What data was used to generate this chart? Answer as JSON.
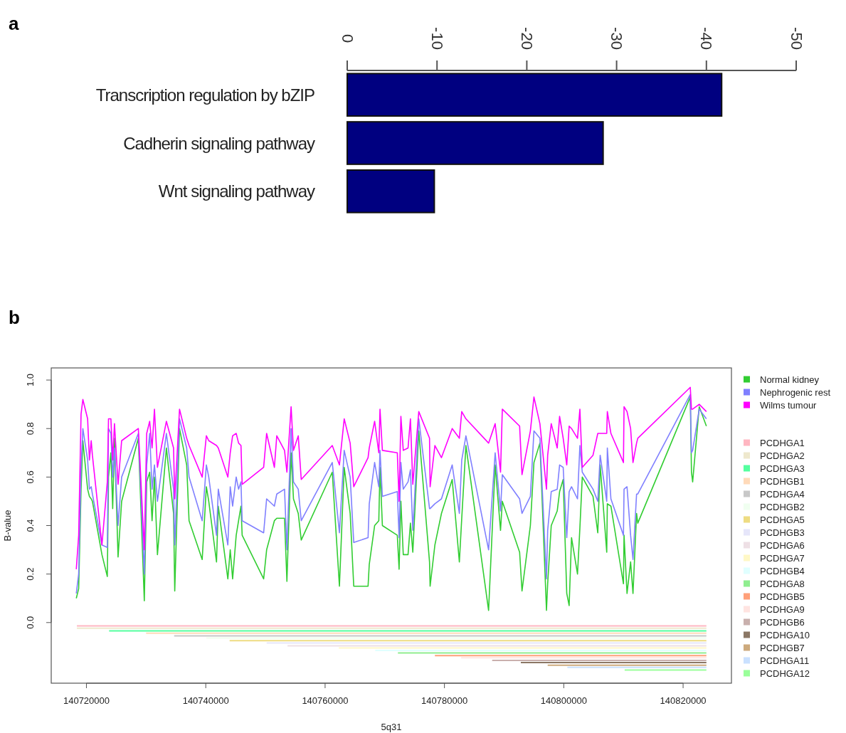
{
  "chart_data": [
    {
      "type": "bar",
      "title": "a",
      "orientation": "horizontal",
      "categories": [
        "Transcription regulation by bZIP",
        "Cadherin signaling pathway",
        "Wnt signaling pathway"
      ],
      "values": [
        -41.7,
        -28.5,
        -9.7
      ],
      "color": "#000080",
      "xlim": [
        0,
        -50
      ],
      "xticks": [
        0,
        -10,
        -20,
        -30,
        -40,
        -50
      ]
    },
    {
      "type": "line",
      "title": "b",
      "xlabel": "5q31",
      "ylabel": "B-value",
      "legend": "right",
      "xlim": [
        140714100,
        140828100
      ],
      "xticks": [
        140720000,
        140740000,
        140760000,
        140780000,
        140800000,
        140820000
      ],
      "ylim": [
        -0.25,
        1.05
      ],
      "yticks": [
        {
          "value": 0,
          "label": "0.0"
        },
        {
          "value": 0.2,
          "label": "0.2"
        },
        {
          "value": 0.4,
          "label": "0.4"
        },
        {
          "value": 0.6,
          "label": "0.6"
        },
        {
          "value": 0.8,
          "label": "0.8"
        },
        {
          "value": 1,
          "label": "1.0"
        }
      ],
      "x": [
        140718300,
        140718700,
        140719100,
        140719400,
        140720200,
        140720500,
        140720800,
        140721000,
        140722600,
        140723500,
        140723700,
        140724100,
        140724400,
        140724700,
        140725300,
        140725900,
        140728700,
        140729700,
        140730100,
        140730600,
        140731000,
        140731400,
        140731900,
        140733400,
        140734600,
        140734800,
        140735600,
        140736800,
        140737200,
        140739400,
        140740100,
        140740500,
        140741800,
        140742100,
        140743700,
        140744100,
        140744500,
        140745100,
        140745500,
        140745900,
        140746100,
        140749700,
        140750200,
        140751500,
        140751900,
        140753200,
        140753600,
        140754300,
        140754700,
        140755500,
        140756000,
        140761200,
        140762400,
        140763200,
        140764200,
        140764800,
        140767200,
        140767400,
        140768300,
        140769000,
        140769200,
        140769600,
        140772100,
        140772400,
        140772700,
        140773100,
        140773900,
        140774300,
        140774700,
        140775700,
        140777500,
        140777600,
        140778400,
        140779500,
        140781300,
        140782500,
        140782900,
        140783600,
        140787400,
        140788500,
        140789400,
        140789700,
        140792600,
        140793000,
        140794400,
        140795000,
        140796000,
        140797100,
        140797300,
        140797900,
        140798900,
        140799300,
        140799900,
        140800500,
        140800900,
        140801300,
        140802300,
        140802700,
        140803100,
        140804900,
        140805700,
        140806100,
        140807200,
        140807300,
        140807900,
        140810000,
        140810100,
        140810600,
        140811200,
        140811600,
        140812200,
        140812400,
        140821200,
        140821400,
        140821600,
        140822700,
        140823900
      ],
      "series": [
        {
          "name": "Normal kidney",
          "color": "#32cd32",
          "values": [
            0.1,
            0.14,
            0.55,
            0.75,
            0.55,
            0.52,
            0.51,
            0.5,
            0.28,
            0.19,
            0.6,
            0.7,
            0.47,
            0.76,
            0.27,
            0.5,
            0.76,
            0.09,
            0.58,
            0.62,
            0.42,
            0.6,
            0.28,
            0.72,
            0.45,
            0.13,
            0.8,
            0.65,
            0.42,
            0.26,
            0.56,
            0.5,
            0.25,
            0.48,
            0.18,
            0.3,
            0.18,
            0.36,
            0.42,
            0.48,
            0.36,
            0.18,
            0.3,
            0.42,
            0.43,
            0.43,
            0.17,
            0.7,
            0.51,
            0.45,
            0.34,
            0.62,
            0.15,
            0.64,
            0.45,
            0.15,
            0.15,
            0.24,
            0.4,
            0.42,
            0.64,
            0.4,
            0.36,
            0.22,
            0.5,
            0.28,
            0.28,
            0.41,
            0.29,
            0.79,
            0.25,
            0.15,
            0.32,
            0.45,
            0.59,
            0.25,
            0.43,
            0.73,
            0.05,
            0.65,
            0.38,
            0.5,
            0.29,
            0.13,
            0.4,
            0.66,
            0.74,
            0.05,
            0.16,
            0.4,
            0.46,
            0.54,
            0.59,
            0.12,
            0.07,
            0.35,
            0.2,
            0.39,
            0.6,
            0.52,
            0.37,
            0.65,
            0.29,
            0.49,
            0.48,
            0.16,
            0.36,
            0.12,
            0.25,
            0.12,
            0.45,
            0.41,
            0.93,
            0.62,
            0.58,
            0.89,
            0.81
          ]
        },
        {
          "name": "Nephrogenic rest",
          "color": "#8080ff",
          "values": [
            0.12,
            0.2,
            0.64,
            0.8,
            0.67,
            0.55,
            0.56,
            0.53,
            0.32,
            0.31,
            0.8,
            0.78,
            0.6,
            0.72,
            0.4,
            0.6,
            0.78,
            0.2,
            0.65,
            0.78,
            0.55,
            0.65,
            0.5,
            0.78,
            0.55,
            0.32,
            0.84,
            0.72,
            0.6,
            0.42,
            0.65,
            0.6,
            0.36,
            0.55,
            0.32,
            0.56,
            0.48,
            0.6,
            0.55,
            0.58,
            0.42,
            0.37,
            0.51,
            0.48,
            0.53,
            0.55,
            0.3,
            0.8,
            0.58,
            0.55,
            0.42,
            0.66,
            0.37,
            0.71,
            0.6,
            0.33,
            0.35,
            0.49,
            0.66,
            0.56,
            0.71,
            0.52,
            0.54,
            0.35,
            0.66,
            0.55,
            0.58,
            0.63,
            0.38,
            0.84,
            0.47,
            0.47,
            0.49,
            0.51,
            0.65,
            0.45,
            0.67,
            0.77,
            0.3,
            0.7,
            0.46,
            0.61,
            0.51,
            0.45,
            0.52,
            0.79,
            0.76,
            0.18,
            0.38,
            0.54,
            0.55,
            0.65,
            0.64,
            0.35,
            0.54,
            0.56,
            0.51,
            0.73,
            0.62,
            0.55,
            0.5,
            0.69,
            0.5,
            0.72,
            0.51,
            0.36,
            0.55,
            0.56,
            0.36,
            0.26,
            0.53,
            0.53,
            0.94,
            0.7,
            0.71,
            0.88,
            0.84
          ]
        },
        {
          "name": "Wilms tumour",
          "color": "#ff00ff",
          "values": [
            0.22,
            0.36,
            0.86,
            0.92,
            0.84,
            0.67,
            0.75,
            0.69,
            0.32,
            0.58,
            0.84,
            0.84,
            0.67,
            0.82,
            0.57,
            0.75,
            0.8,
            0.3,
            0.78,
            0.83,
            0.72,
            0.88,
            0.64,
            0.83,
            0.72,
            0.51,
            0.88,
            0.76,
            0.73,
            0.6,
            0.77,
            0.75,
            0.73,
            0.72,
            0.6,
            0.7,
            0.77,
            0.78,
            0.74,
            0.73,
            0.57,
            0.64,
            0.78,
            0.64,
            0.77,
            0.71,
            0.62,
            0.89,
            0.71,
            0.77,
            0.59,
            0.73,
            0.65,
            0.84,
            0.74,
            0.56,
            0.68,
            0.72,
            0.83,
            0.7,
            0.88,
            0.71,
            0.7,
            0.5,
            0.85,
            0.71,
            0.72,
            0.84,
            0.57,
            0.87,
            0.76,
            0.56,
            0.73,
            0.68,
            0.8,
            0.76,
            0.87,
            0.84,
            0.74,
            0.82,
            0.62,
            0.88,
            0.81,
            0.61,
            0.79,
            0.93,
            0.82,
            0.55,
            0.69,
            0.82,
            0.72,
            0.85,
            0.76,
            0.65,
            0.81,
            0.8,
            0.76,
            0.88,
            0.64,
            0.69,
            0.78,
            0.78,
            0.78,
            0.87,
            0.78,
            0.66,
            0.89,
            0.87,
            0.8,
            0.66,
            0.74,
            0.76,
            0.97,
            0.88,
            0.88,
            0.9,
            0.87
          ]
        },
        {
          "name": "PCDHGA1",
          "color": "#ffb6c1",
          "x": [
            140718400,
            140823900
          ],
          "values": [
            -0.014,
            -0.014
          ]
        },
        {
          "name": "PCDHGA2",
          "color": "#eee8cd",
          "x": [
            140718400,
            140823900
          ],
          "values": [
            -0.023,
            -0.023
          ]
        },
        {
          "name": "PCDHGA3",
          "color": "#54ff9f",
          "x": [
            140723800,
            140823900
          ],
          "values": [
            -0.034,
            -0.034
          ]
        },
        {
          "name": "PCDHGB1",
          "color": "#ffdab9",
          "x": [
            140730000,
            140823900
          ],
          "values": [
            -0.044,
            -0.044
          ]
        },
        {
          "name": "PCDHGA4",
          "color": "#c8c8c8",
          "x": [
            140734700,
            140823900
          ],
          "values": [
            -0.055,
            -0.055
          ]
        },
        {
          "name": "PCDHGB2",
          "color": "#f0fff0",
          "x": [
            140740100,
            140823900
          ],
          "values": [
            -0.064,
            -0.064
          ]
        },
        {
          "name": "PCDHGA5",
          "color": "#eedc82",
          "x": [
            140744000,
            140823900
          ],
          "values": [
            -0.075,
            -0.075
          ]
        },
        {
          "name": "PCDHGB3",
          "color": "#e6e6fa",
          "x": [
            140750200,
            140823900
          ],
          "values": [
            -0.084,
            -0.084
          ]
        },
        {
          "name": "PCDHGA6",
          "color": "#eee0e5",
          "x": [
            140753700,
            140823900
          ],
          "values": [
            -0.096,
            -0.096
          ]
        },
        {
          "name": "PCDHGA7",
          "color": "#fff8c6",
          "x": [
            140762300,
            140823900
          ],
          "values": [
            -0.105,
            -0.105
          ]
        },
        {
          "name": "PCDHGB4",
          "color": "#e0ffff",
          "x": [
            140768400,
            140823900
          ],
          "values": [
            -0.115,
            -0.115
          ]
        },
        {
          "name": "PCDHGA8",
          "color": "#90ee90",
          "x": [
            140772200,
            140823900
          ],
          "values": [
            -0.125,
            -0.125
          ]
        },
        {
          "name": "PCDHGB5",
          "color": "#ffa07a",
          "x": [
            140778400,
            140823900
          ],
          "values": [
            -0.136,
            -0.136
          ]
        },
        {
          "name": "PCDHGA9",
          "color": "#ffe4e1",
          "x": [
            140782800,
            140823900
          ],
          "values": [
            -0.145,
            -0.145
          ]
        },
        {
          "name": "PCDHGB6",
          "color": "#c9b0ad",
          "x": [
            140788000,
            140823900
          ],
          "values": [
            -0.156,
            -0.156
          ]
        },
        {
          "name": "PCDHGA10",
          "color": "#8b7765",
          "x": [
            140792800,
            140823900
          ],
          "values": [
            -0.165,
            -0.165
          ]
        },
        {
          "name": "PCDHGB7",
          "color": "#cdaa7d",
          "x": [
            140797300,
            140823900
          ],
          "values": [
            -0.176,
            -0.176
          ]
        },
        {
          "name": "PCDHGA11",
          "color": "#cae1ff",
          "x": [
            140800600,
            140823900
          ],
          "values": [
            -0.185,
            -0.185
          ]
        },
        {
          "name": "PCDHGA12",
          "color": "#9aff9a",
          "x": [
            140810200,
            140823900
          ],
          "values": [
            -0.196,
            -0.196
          ]
        }
      ]
    }
  ]
}
